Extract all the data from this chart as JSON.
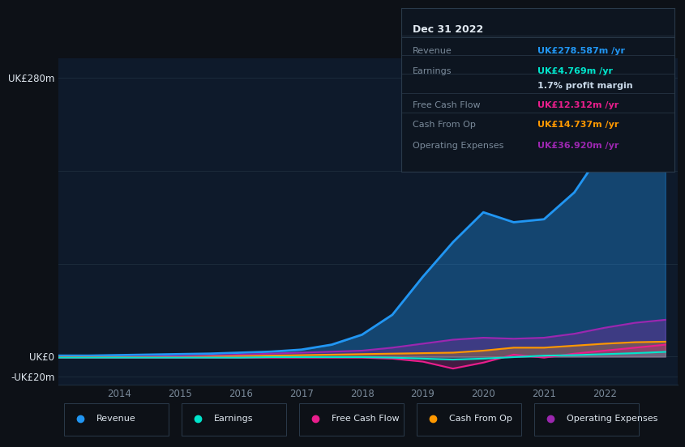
{
  "background_color": "#0d1117",
  "plot_bg_color": "#0e1a2b",
  "years": [
    2013.0,
    2013.5,
    2014.0,
    2014.5,
    2015.0,
    2015.5,
    2016.0,
    2016.5,
    2017.0,
    2017.5,
    2018.0,
    2018.5,
    2019.0,
    2019.5,
    2020.0,
    2020.5,
    2021.0,
    2021.5,
    2022.0,
    2022.5,
    2023.0
  ],
  "revenue": [
    1,
    1,
    1.5,
    2,
    2.5,
    3,
    4,
    5,
    7,
    12,
    22,
    42,
    80,
    115,
    145,
    135,
    138,
    165,
    210,
    260,
    278
  ],
  "earnings": [
    -1,
    -1,
    -1,
    -1,
    -1,
    -1,
    -1,
    -0.5,
    -0.5,
    -0.5,
    -0.5,
    -1,
    -2,
    -3,
    -2,
    -0.5,
    1,
    1.5,
    2.5,
    3.5,
    4.8
  ],
  "free_cash_flow": [
    -1,
    -1,
    -1,
    -1,
    -1,
    -1,
    -1,
    -1,
    -1,
    -1,
    -1,
    -2,
    -5,
    -12,
    -6,
    2,
    -1,
    3,
    6,
    9,
    12
  ],
  "cash_from_op": [
    -0.5,
    -0.5,
    -0.5,
    -0.5,
    -0.5,
    0,
    0.5,
    1,
    1.5,
    2,
    2.5,
    3,
    3.5,
    4,
    6,
    9,
    9,
    11,
    13,
    14.5,
    15
  ],
  "operating_expenses": [
    -0.5,
    -0.5,
    -0.5,
    0,
    0.5,
    1,
    2,
    3,
    4,
    5,
    6,
    9,
    13,
    17,
    19,
    18,
    19,
    23,
    29,
    34,
    37
  ],
  "revenue_color": "#2196f3",
  "earnings_color": "#00e5cc",
  "free_cash_flow_color": "#e91e8c",
  "cash_from_op_color": "#ff9800",
  "operating_expenses_color": "#9c27b0",
  "ylim_top": 300,
  "ylim_bottom": -28,
  "ytick_vals": [
    -20,
    0,
    280
  ],
  "ytick_labels": [
    "-UK£20m",
    "UK£0",
    "UK£280m"
  ],
  "xtick_vals": [
    2014,
    2015,
    2016,
    2017,
    2018,
    2019,
    2020,
    2021,
    2022
  ],
  "xtick_labels": [
    "2014",
    "2015",
    "2016",
    "2017",
    "2018",
    "2019",
    "2020",
    "2021",
    "2022"
  ],
  "grid_color": "#1e2e3e",
  "text_color": "#7a8a9a",
  "white_color": "#e0e8f0",
  "legend_labels": [
    "Revenue",
    "Earnings",
    "Free Cash Flow",
    "Cash From Op",
    "Operating Expenses"
  ],
  "info_box": {
    "title": "Dec 31 2022",
    "rows": [
      {
        "label": "Revenue",
        "value": "UK£278.587m /yr",
        "value_color": "#2196f3"
      },
      {
        "label": "Earnings",
        "value": "UK£4.769m /yr",
        "value_color": "#00e5cc"
      },
      {
        "label": "",
        "value": "1.7% profit margin",
        "value_color": "#c8d8e8"
      },
      {
        "label": "Free Cash Flow",
        "value": "UK£12.312m /yr",
        "value_color": "#e91e8c"
      },
      {
        "label": "Cash From Op",
        "value": "UK£14.737m /yr",
        "value_color": "#ff9800"
      },
      {
        "label": "Operating Expenses",
        "value": "UK£36.920m /yr",
        "value_color": "#9c27b0"
      }
    ]
  }
}
